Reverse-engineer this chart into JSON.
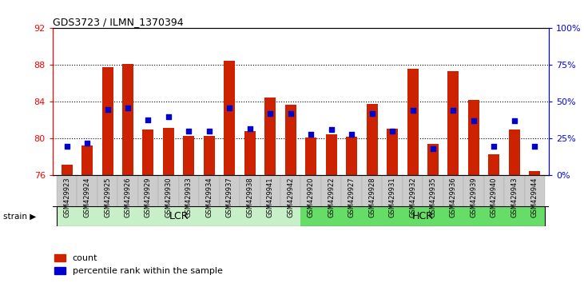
{
  "title": "GDS3723 / ILMN_1370394",
  "samples": [
    "GSM429923",
    "GSM429924",
    "GSM429925",
    "GSM429926",
    "GSM429929",
    "GSM429930",
    "GSM429933",
    "GSM429934",
    "GSM429937",
    "GSM429938",
    "GSM429941",
    "GSM429942",
    "GSM429920",
    "GSM429922",
    "GSM429927",
    "GSM429928",
    "GSM429931",
    "GSM429932",
    "GSM429935",
    "GSM429936",
    "GSM429939",
    "GSM429940",
    "GSM429943",
    "GSM429944"
  ],
  "count_values": [
    77.2,
    79.3,
    87.8,
    88.1,
    81.0,
    81.2,
    80.3,
    80.3,
    88.5,
    80.8,
    84.5,
    83.7,
    80.1,
    80.5,
    80.2,
    83.8,
    81.1,
    87.6,
    79.4,
    87.3,
    84.2,
    78.3,
    81.0,
    76.5
  ],
  "percentile_values": [
    20,
    22,
    45,
    46,
    38,
    40,
    30,
    30,
    46,
    32,
    42,
    42,
    28,
    31,
    28,
    42,
    30,
    44,
    18,
    44,
    37,
    20,
    37,
    20
  ],
  "group_split": 12,
  "lcr_color": "#c8f0c8",
  "hcr_color": "#66dd66",
  "bar_color": "#cc2200",
  "dot_color": "#0000cc",
  "ylim_left": [
    76,
    92
  ],
  "ylim_right": [
    0,
    100
  ],
  "yticks_left": [
    76,
    80,
    84,
    88,
    92
  ],
  "yticks_right": [
    0,
    25,
    50,
    75,
    100
  ],
  "ytick_labels_right": [
    "0%",
    "25%",
    "50%",
    "75%",
    "100%"
  ],
  "grid_lines": [
    80,
    84,
    88
  ],
  "legend_count_label": "count",
  "legend_pct_label": "percentile rank within the sample",
  "strain_label": "strain"
}
